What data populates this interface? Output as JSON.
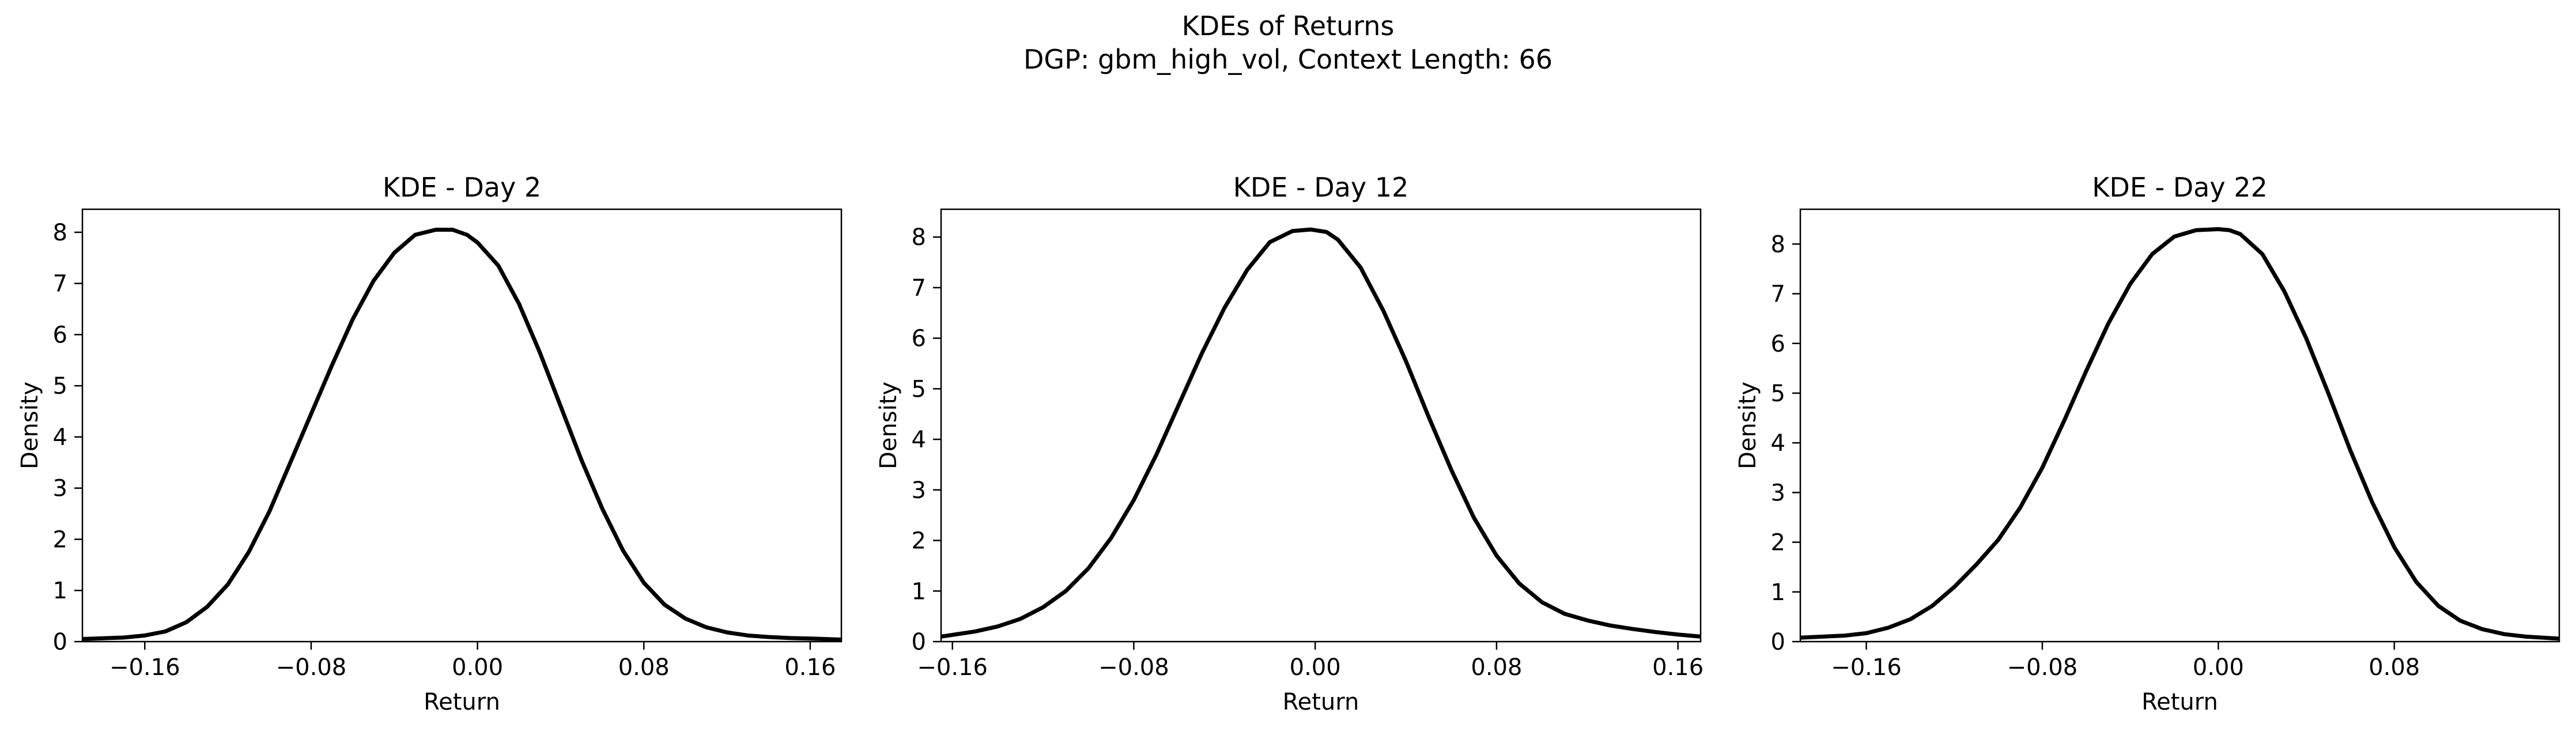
{
  "figure": {
    "title_line1": "KDEs of Returns",
    "title_line2": "DGP: gbm_high_vol, Context Length: 66",
    "line_color": "#000000"
  },
  "chart_data": [
    {
      "type": "line",
      "title": "KDE - Day 2",
      "xlabel": "Return",
      "ylabel": "Density",
      "xlim": [
        -0.19,
        0.175
      ],
      "ylim": [
        0,
        8.45
      ],
      "xticks": [
        -0.16,
        -0.08,
        0.0,
        0.08,
        0.16
      ],
      "xtick_labels": [
        "−0.16",
        "−0.08",
        "0.00",
        "0.08",
        "0.16"
      ],
      "yticks": [
        0,
        1,
        2,
        3,
        4,
        5,
        6,
        7,
        8
      ],
      "ytick_labels": [
        "0",
        "1",
        "2",
        "3",
        "4",
        "5",
        "6",
        "7",
        "8"
      ],
      "grid": false,
      "series": [
        {
          "x": [
            -0.19,
            -0.17,
            -0.16,
            -0.15,
            -0.14,
            -0.13,
            -0.12,
            -0.11,
            -0.1,
            -0.09,
            -0.08,
            -0.07,
            -0.06,
            -0.05,
            -0.04,
            -0.03,
            -0.02,
            -0.012,
            -0.005,
            0.0,
            0.01,
            0.02,
            0.03,
            0.04,
            0.05,
            0.06,
            0.07,
            0.08,
            0.09,
            0.1,
            0.11,
            0.12,
            0.13,
            0.14,
            0.15,
            0.16,
            0.175
          ],
          "y": [
            0.05,
            0.08,
            0.12,
            0.2,
            0.38,
            0.68,
            1.12,
            1.75,
            2.55,
            3.5,
            4.45,
            5.4,
            6.3,
            7.05,
            7.6,
            7.95,
            8.05,
            8.05,
            7.95,
            7.8,
            7.35,
            6.6,
            5.65,
            4.6,
            3.55,
            2.6,
            1.78,
            1.15,
            0.72,
            0.45,
            0.28,
            0.18,
            0.12,
            0.09,
            0.07,
            0.06,
            0.04
          ]
        }
      ]
    },
    {
      "type": "line",
      "title": "KDE - Day 12",
      "xlabel": "Return",
      "ylabel": "Density",
      "xlim": [
        -0.165,
        0.17
      ],
      "ylim": [
        0,
        8.55
      ],
      "xticks": [
        -0.16,
        -0.08,
        0.0,
        0.08,
        0.16
      ],
      "xtick_labels": [
        "−0.16",
        "−0.08",
        "0.00",
        "0.08",
        "0.16"
      ],
      "yticks": [
        0,
        1,
        2,
        3,
        4,
        5,
        6,
        7,
        8
      ],
      "ytick_labels": [
        "0",
        "1",
        "2",
        "3",
        "4",
        "5",
        "6",
        "7",
        "8"
      ],
      "grid": false,
      "series": [
        {
          "x": [
            -0.165,
            -0.15,
            -0.14,
            -0.13,
            -0.12,
            -0.11,
            -0.1,
            -0.09,
            -0.08,
            -0.07,
            -0.06,
            -0.05,
            -0.04,
            -0.03,
            -0.02,
            -0.01,
            -0.002,
            0.005,
            0.01,
            0.02,
            0.03,
            0.04,
            0.05,
            0.06,
            0.07,
            0.08,
            0.09,
            0.1,
            0.11,
            0.12,
            0.13,
            0.14,
            0.15,
            0.16,
            0.17
          ],
          "y": [
            0.1,
            0.2,
            0.3,
            0.45,
            0.68,
            1.0,
            1.45,
            2.05,
            2.8,
            3.7,
            4.7,
            5.7,
            6.6,
            7.35,
            7.9,
            8.12,
            8.15,
            8.1,
            7.95,
            7.4,
            6.55,
            5.55,
            4.45,
            3.4,
            2.45,
            1.7,
            1.15,
            0.78,
            0.55,
            0.42,
            0.32,
            0.25,
            0.19,
            0.14,
            0.1
          ]
        }
      ]
    },
    {
      "type": "line",
      "title": "KDE - Day 22",
      "xlabel": "Return",
      "ylabel": "Density",
      "xlim": [
        -0.19,
        0.155
      ],
      "ylim": [
        0,
        8.7
      ],
      "xticks": [
        -0.16,
        -0.08,
        0.0,
        0.08
      ],
      "xtick_labels": [
        "−0.16",
        "−0.08",
        "0.00",
        "0.08"
      ],
      "yticks": [
        0,
        1,
        2,
        3,
        4,
        5,
        6,
        7,
        8
      ],
      "ytick_labels": [
        "0",
        "1",
        "2",
        "3",
        "4",
        "5",
        "6",
        "7",
        "8"
      ],
      "grid": false,
      "series": [
        {
          "x": [
            -0.19,
            -0.17,
            -0.16,
            -0.15,
            -0.14,
            -0.13,
            -0.12,
            -0.11,
            -0.1,
            -0.09,
            -0.08,
            -0.07,
            -0.06,
            -0.05,
            -0.04,
            -0.03,
            -0.02,
            -0.01,
            0.0,
            0.005,
            0.01,
            0.02,
            0.03,
            0.04,
            0.05,
            0.06,
            0.07,
            0.08,
            0.09,
            0.1,
            0.11,
            0.12,
            0.13,
            0.14,
            0.155
          ],
          "y": [
            0.08,
            0.12,
            0.17,
            0.28,
            0.45,
            0.72,
            1.1,
            1.55,
            2.05,
            2.7,
            3.5,
            4.45,
            5.45,
            6.4,
            7.2,
            7.8,
            8.15,
            8.28,
            8.3,
            8.28,
            8.2,
            7.8,
            7.05,
            6.1,
            5.0,
            3.85,
            2.8,
            1.9,
            1.2,
            0.72,
            0.42,
            0.25,
            0.15,
            0.1,
            0.06
          ]
        }
      ]
    }
  ]
}
